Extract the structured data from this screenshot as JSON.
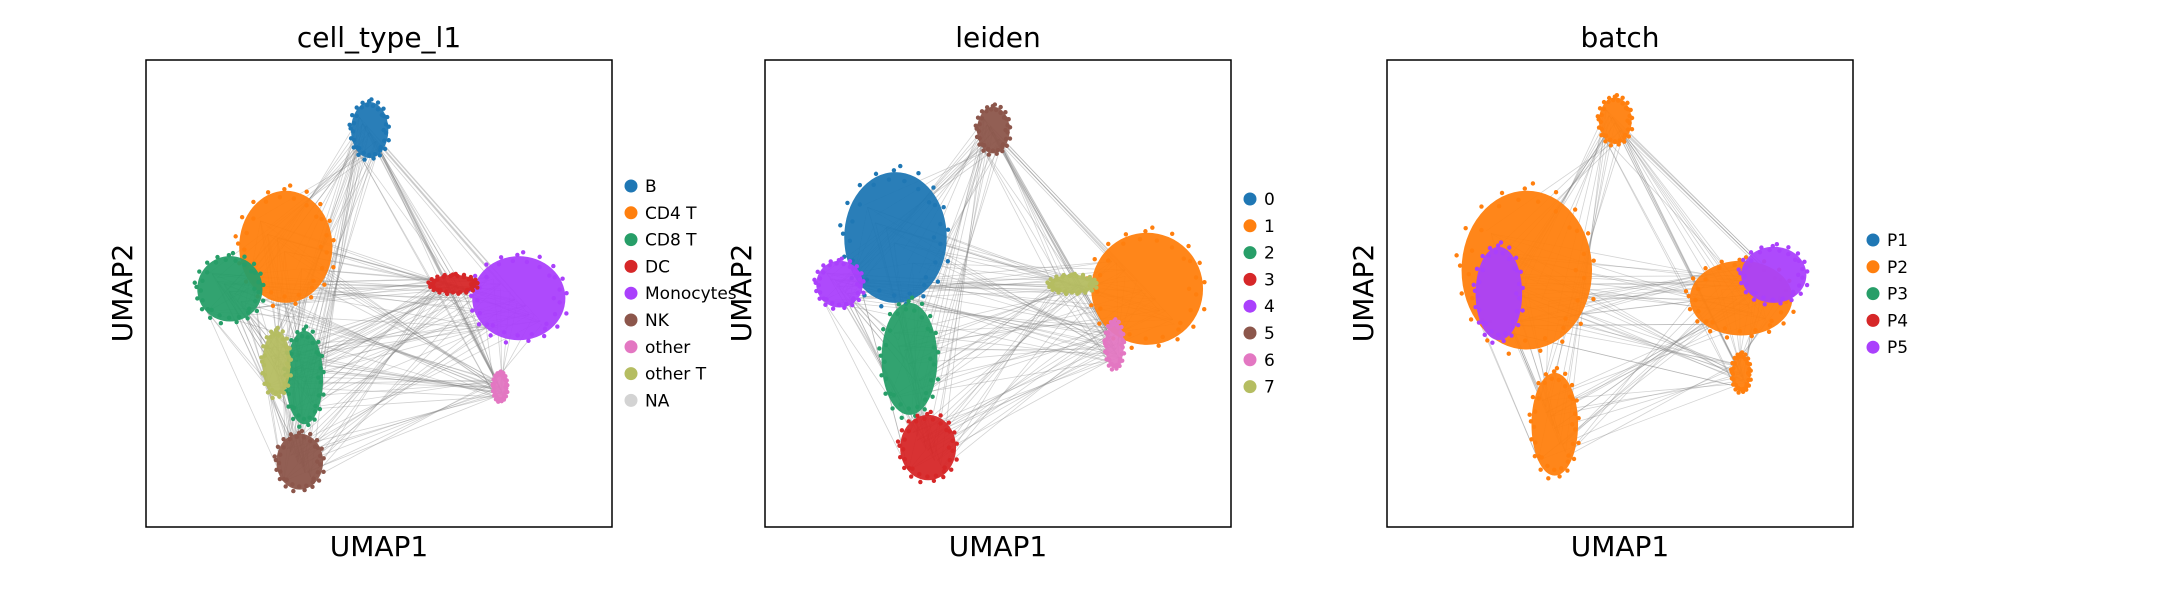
{
  "chart_data": [
    {
      "type": "scatter",
      "title": "cell_type_l1",
      "xlabel": "UMAP1",
      "ylabel": "UMAP2",
      "grid": false,
      "ticks": false,
      "legend_position": "right",
      "legend": [
        {
          "label": "B",
          "color": "#1f77b4"
        },
        {
          "label": "CD4 T",
          "color": "#ff7f0e"
        },
        {
          "label": "CD8 T",
          "color": "#279e68"
        },
        {
          "label": "DC",
          "color": "#d62728"
        },
        {
          "label": "Monocytes",
          "color": "#aa40fc"
        },
        {
          "label": "NK",
          "color": "#8c564b"
        },
        {
          "label": "other",
          "color": "#e377c2"
        },
        {
          "label": "other T",
          "color": "#b5bd61"
        },
        {
          "label": "NA",
          "color": "#d3d3d3"
        }
      ],
      "edge_color": "#808080",
      "clusters": [
        {
          "label": "B",
          "cx": 0.48,
          "cy": 0.85,
          "rx": 0.04,
          "ry": 0.06
        },
        {
          "label": "CD4 T",
          "cx": 0.3,
          "cy": 0.6,
          "rx": 0.1,
          "ry": 0.12
        },
        {
          "label": "CD8 T",
          "cx": 0.18,
          "cy": 0.51,
          "rx": 0.07,
          "ry": 0.07
        },
        {
          "label": "CD8 T",
          "cx": 0.34,
          "cy": 0.32,
          "rx": 0.04,
          "ry": 0.1
        },
        {
          "label": "other T",
          "cx": 0.28,
          "cy": 0.35,
          "rx": 0.03,
          "ry": 0.07
        },
        {
          "label": "NK",
          "cx": 0.33,
          "cy": 0.14,
          "rx": 0.05,
          "ry": 0.06
        },
        {
          "label": "Monocytes",
          "cx": 0.8,
          "cy": 0.49,
          "rx": 0.1,
          "ry": 0.09
        },
        {
          "label": "DC",
          "cx": 0.66,
          "cy": 0.52,
          "rx": 0.05,
          "ry": 0.02
        },
        {
          "label": "other",
          "cx": 0.76,
          "cy": 0.3,
          "rx": 0.015,
          "ry": 0.03
        }
      ]
    },
    {
      "type": "scatter",
      "title": "leiden",
      "xlabel": "UMAP1",
      "ylabel": "UMAP2",
      "grid": false,
      "ticks": false,
      "legend_position": "right",
      "legend": [
        {
          "label": "0",
          "color": "#1f77b4"
        },
        {
          "label": "1",
          "color": "#ff7f0e"
        },
        {
          "label": "2",
          "color": "#279e68"
        },
        {
          "label": "3",
          "color": "#d62728"
        },
        {
          "label": "4",
          "color": "#aa40fc"
        },
        {
          "label": "5",
          "color": "#8c564b"
        },
        {
          "label": "6",
          "color": "#e377c2"
        },
        {
          "label": "7",
          "color": "#b5bd61"
        }
      ],
      "edge_color": "#808080",
      "clusters": [
        {
          "label": "5",
          "cx": 0.49,
          "cy": 0.85,
          "rx": 0.035,
          "ry": 0.05
        },
        {
          "label": "0",
          "cx": 0.28,
          "cy": 0.62,
          "rx": 0.11,
          "ry": 0.14
        },
        {
          "label": "4",
          "cx": 0.16,
          "cy": 0.52,
          "rx": 0.05,
          "ry": 0.05
        },
        {
          "label": "2",
          "cx": 0.31,
          "cy": 0.36,
          "rx": 0.06,
          "ry": 0.12
        },
        {
          "label": "3",
          "cx": 0.35,
          "cy": 0.17,
          "rx": 0.06,
          "ry": 0.07
        },
        {
          "label": "1",
          "cx": 0.82,
          "cy": 0.51,
          "rx": 0.12,
          "ry": 0.12
        },
        {
          "label": "7",
          "cx": 0.66,
          "cy": 0.52,
          "rx": 0.05,
          "ry": 0.02
        },
        {
          "label": "6",
          "cx": 0.75,
          "cy": 0.39,
          "rx": 0.02,
          "ry": 0.05
        }
      ]
    },
    {
      "type": "scatter",
      "title": "batch",
      "xlabel": "UMAP1",
      "ylabel": "UMAP2",
      "grid": false,
      "ticks": false,
      "legend_position": "right",
      "legend": [
        {
          "label": "P1",
          "color": "#1f77b4"
        },
        {
          "label": "P2",
          "color": "#ff7f0e"
        },
        {
          "label": "P3",
          "color": "#279e68"
        },
        {
          "label": "P4",
          "color": "#d62728"
        },
        {
          "label": "P5",
          "color": "#aa40fc"
        }
      ],
      "edge_color": "#808080",
      "clusters": [
        {
          "label": "P2",
          "cx": 0.49,
          "cy": 0.87,
          "rx": 0.035,
          "ry": 0.05
        },
        {
          "label": "P2",
          "cx": 0.3,
          "cy": 0.55,
          "rx": 0.14,
          "ry": 0.17
        },
        {
          "label": "P5",
          "cx": 0.24,
          "cy": 0.5,
          "rx": 0.05,
          "ry": 0.1
        },
        {
          "label": "P2",
          "cx": 0.36,
          "cy": 0.22,
          "rx": 0.05,
          "ry": 0.11
        },
        {
          "label": "P2",
          "cx": 0.76,
          "cy": 0.49,
          "rx": 0.11,
          "ry": 0.08
        },
        {
          "label": "P5",
          "cx": 0.83,
          "cy": 0.54,
          "rx": 0.07,
          "ry": 0.06
        },
        {
          "label": "P2",
          "cx": 0.76,
          "cy": 0.33,
          "rx": 0.02,
          "ry": 0.04
        }
      ]
    }
  ]
}
